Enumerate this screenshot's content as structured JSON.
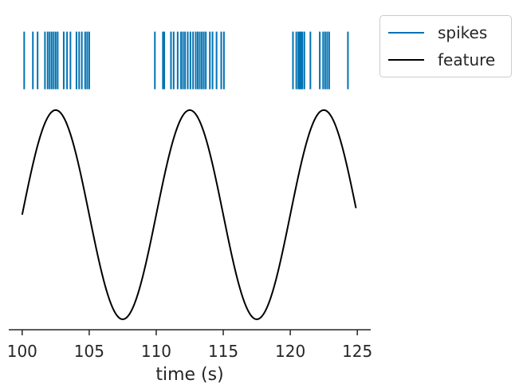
{
  "chart_data": {
    "type": "line",
    "title": "",
    "xlabel": "time (s)",
    "ylabel": "",
    "xlim": [
      99.0,
      126.0
    ],
    "ylim": [
      -1.1,
      1.9
    ],
    "xticks": [
      100,
      105,
      110,
      115,
      120,
      125
    ],
    "grid": false,
    "legend_position": "outside-top-right",
    "series": [
      {
        "name": "spikes",
        "kind": "eventplot",
        "color": "#0072b2",
        "y_range": [
          1.2,
          1.75
        ],
        "x": [
          100.15,
          100.8,
          101.15,
          101.7,
          101.9,
          102.05,
          102.2,
          102.35,
          102.5,
          102.65,
          103.1,
          103.35,
          103.6,
          104.05,
          104.25,
          104.45,
          104.7,
          104.85,
          105.0,
          109.9,
          110.5,
          110.6,
          111.1,
          111.3,
          111.6,
          111.85,
          112.0,
          112.15,
          112.35,
          112.55,
          112.75,
          112.95,
          113.1,
          113.25,
          113.4,
          113.55,
          113.7,
          114.0,
          114.2,
          114.5,
          114.85,
          115.05,
          120.2,
          120.45,
          120.6,
          120.7,
          120.8,
          120.9,
          121.05,
          121.5,
          122.2,
          122.45,
          122.6,
          122.75,
          122.9,
          124.3
        ]
      },
      {
        "name": "feature",
        "kind": "line",
        "color": "#000000",
        "x_range": [
          100.0,
          124.9
        ],
        "function": "sin(2*pi*(t-100)/10)",
        "samples": 500
      }
    ]
  }
}
